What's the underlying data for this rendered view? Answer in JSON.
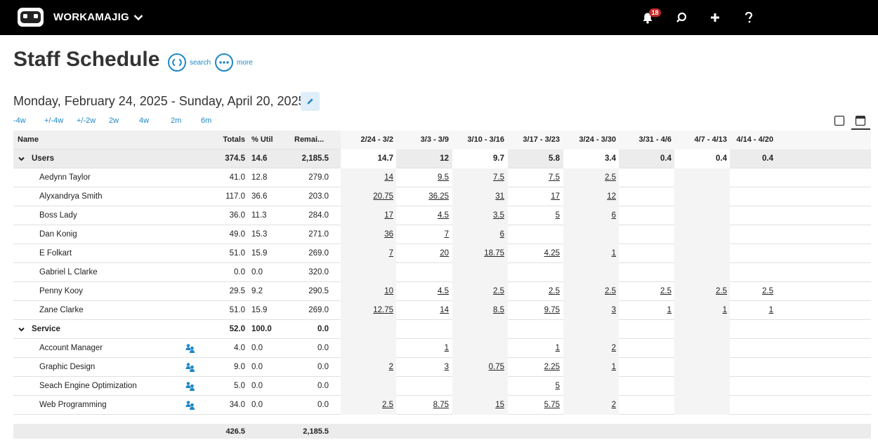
{
  "app": {
    "name": "WORKAMAJIG",
    "notifications": "18"
  },
  "page": {
    "title": "Staff Schedule",
    "search_label": "search",
    "more_label": "more",
    "date_range": "Monday, February 24, 2025 - Sunday, April 20, 2025"
  },
  "ranges": [
    "-4w",
    "+/-4w",
    "+/-2w",
    "2w",
    "4w",
    "2m",
    "6m"
  ],
  "columns": {
    "name": "Name",
    "totals": "Totals",
    "util": "% Util",
    "remaining": "Remai...",
    "weeks": [
      "2/24 - 3/2",
      "3/3 - 3/9",
      "3/10 - 3/16",
      "3/17 - 3/23",
      "3/24 - 3/30",
      "3/31 - 4/6",
      "4/7 - 4/13",
      "4/14 - 4/20"
    ]
  },
  "groups": [
    {
      "name": "Users",
      "totals": "374.5",
      "util": "14.6",
      "remaining": "2,185.5",
      "weeks": [
        "14.7",
        "12",
        "9.7",
        "5.8",
        "3.4",
        "0.4",
        "0.4",
        "0.4"
      ],
      "rows": [
        {
          "name": "Aedynn Taylor",
          "totals": "41.0",
          "util": "12.8",
          "remaining": "279.0",
          "weeks": [
            "14",
            "9.5",
            "7.5",
            "7.5",
            "2.5",
            "",
            "",
            ""
          ]
        },
        {
          "name": "Alyxandrya Smith",
          "totals": "117.0",
          "util": "36.6",
          "remaining": "203.0",
          "weeks": [
            "20.75",
            "36.25",
            "31",
            "17",
            "12",
            "",
            "",
            ""
          ]
        },
        {
          "name": "Boss Lady",
          "totals": "36.0",
          "util": "11.3",
          "remaining": "284.0",
          "weeks": [
            "17",
            "4.5",
            "3.5",
            "5",
            "6",
            "",
            "",
            ""
          ]
        },
        {
          "name": "Dan Konig",
          "totals": "49.0",
          "util": "15.3",
          "remaining": "271.0",
          "weeks": [
            "36",
            "7",
            "6",
            "",
            "",
            "",
            "",
            ""
          ]
        },
        {
          "name": "E Folkart",
          "totals": "51.0",
          "util": "15.9",
          "remaining": "269.0",
          "weeks": [
            "7",
            "20",
            "18.75",
            "4.25",
            "1",
            "",
            "",
            ""
          ]
        },
        {
          "name": "Gabriel L Clarke",
          "totals": "0.0",
          "util": "0.0",
          "remaining": "320.0",
          "weeks": [
            "",
            "",
            "",
            "",
            "",
            "",
            "",
            ""
          ]
        },
        {
          "name": "Penny Kooy",
          "totals": "29.5",
          "util": "9.2",
          "remaining": "290.5",
          "weeks": [
            "10",
            "4.5",
            "2.5",
            "2.5",
            "2.5",
            "2.5",
            "2.5",
            "2.5"
          ]
        },
        {
          "name": "Zane Clarke",
          "totals": "51.0",
          "util": "15.9",
          "remaining": "269.0",
          "weeks": [
            "12.75",
            "14",
            "8.5",
            "9.75",
            "3",
            "1",
            "1",
            "1"
          ]
        }
      ]
    },
    {
      "name": "Service",
      "totals": "52.0",
      "util": "100.0",
      "remaining": "0.0",
      "weeks": [
        "",
        "",
        "",
        "",
        "",
        "",
        "",
        ""
      ],
      "rows": [
        {
          "name": "Account Manager",
          "totals": "4.0",
          "util": "0.0",
          "remaining": "0.0",
          "weeks": [
            "",
            "1",
            "",
            "1",
            "2",
            "",
            "",
            ""
          ],
          "icon": "team-icon"
        },
        {
          "name": "Graphic Design",
          "totals": "9.0",
          "util": "0.0",
          "remaining": "0.0",
          "weeks": [
            "2",
            "3",
            "0.75",
            "2.25",
            "1",
            "",
            "",
            ""
          ],
          "icon": "team-icon"
        },
        {
          "name": "Seach Engine Optimization",
          "totals": "5.0",
          "util": "0.0",
          "remaining": "0.0",
          "weeks": [
            "",
            "",
            "",
            "5",
            "",
            "",
            "",
            ""
          ],
          "icon": "team-icon"
        },
        {
          "name": "Web Programming",
          "totals": "34.0",
          "util": "0.0",
          "remaining": "0.0",
          "weeks": [
            "2.5",
            "8.75",
            "15",
            "5.75",
            "2",
            "",
            "",
            ""
          ],
          "icon": "team-icon"
        }
      ]
    }
  ],
  "footer": {
    "totals": "426.5",
    "remaining": "2,185.5"
  },
  "colors": {
    "accent": "#1e88c7",
    "topbar": "#000000",
    "badge": "#c62828"
  }
}
